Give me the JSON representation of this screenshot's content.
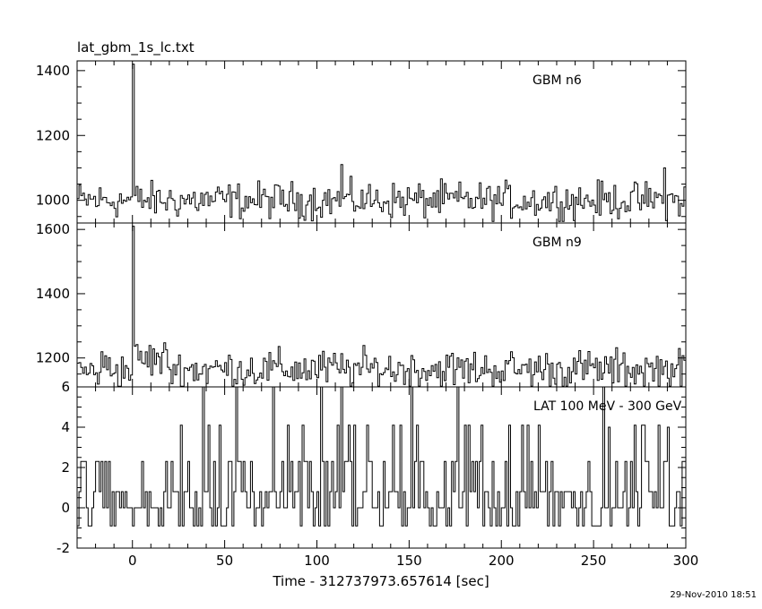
{
  "figure": {
    "title": "lat_gbm_1s_lc.txt",
    "footer": "29-Nov-2010 18:51",
    "xlabel": "Time - 312737973.657614 [sec]"
  },
  "chart_data": [
    {
      "type": "line",
      "panel_label": "GBM n6",
      "xlim": [
        -30,
        300
      ],
      "ylim": [
        930,
        1430
      ],
      "x_ticks": [
        0,
        50,
        100,
        150,
        200,
        250,
        300
      ],
      "y_ticks": [
        1000,
        1200,
        1400
      ],
      "baseline": 1000,
      "noise": 55,
      "min": 935,
      "series": [
        {
          "x": [
            -30,
            -1,
            0,
            1,
            2,
            113,
            288,
            300
          ],
          "y": [
            1000,
            1000,
            1420,
            1000,
            1000,
            1110,
            1100,
            1000
          ]
        }
      ]
    },
    {
      "type": "line",
      "panel_label": "GBM n9",
      "xlim": [
        -30,
        300
      ],
      "ylim": [
        1110,
        1620
      ],
      "x_ticks": [
        0,
        50,
        100,
        150,
        200,
        250,
        300
      ],
      "y_ticks": [
        1200,
        1400,
        1600
      ],
      "baseline": 1165,
      "noise": 60,
      "min": 1112,
      "series": [
        {
          "x": [
            -30,
            -1,
            0,
            1,
            2,
            300
          ],
          "y": [
            1165,
            1170,
            1610,
            1190,
            1190,
            1165
          ]
        }
      ]
    },
    {
      "type": "line",
      "panel_label": "LAT 100 MeV - 300 GeV",
      "xlim": [
        -30,
        300
      ],
      "ylim": [
        -2,
        6
      ],
      "x_ticks": [
        0,
        50,
        100,
        150,
        200,
        250,
        300
      ],
      "x_tick_labels": [
        "0",
        "50",
        "100",
        "150",
        "200",
        "250",
        "300"
      ],
      "y_ticks": [
        -2,
        0,
        2,
        4,
        6
      ],
      "levels": [
        -0.9,
        0,
        0.8,
        2.3,
        4.1,
        6
      ],
      "series": [
        {
          "x": [
            38,
            113,
            151,
            258,
            290
          ],
          "y": [
            6,
            6,
            6,
            4,
            4
          ]
        }
      ]
    }
  ]
}
